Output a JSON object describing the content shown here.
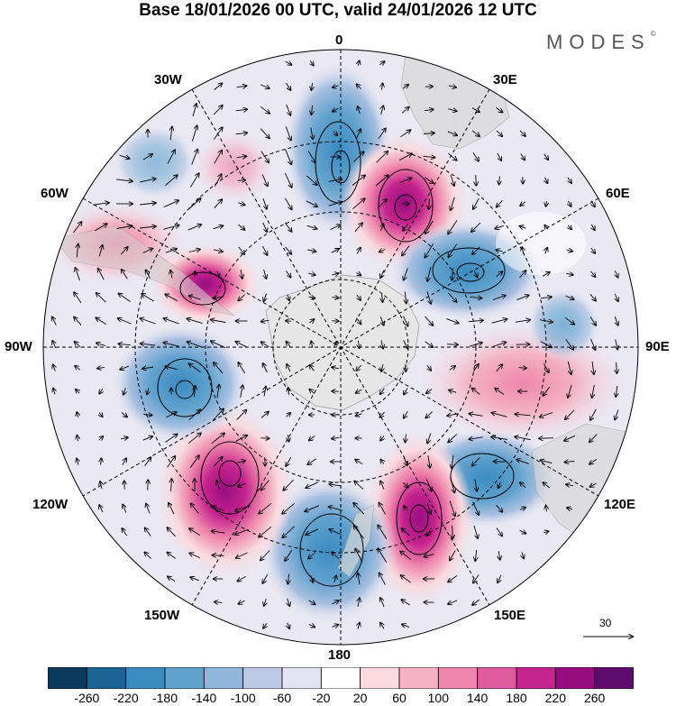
{
  "title": "Base 18/01/2026 00 UTC, valid 24/01/2026 12 UTC",
  "brand": "MODES",
  "brand_mark": "©",
  "longitude_labels": {
    "lon_0": "0",
    "lon_30e": "30E",
    "lon_60e": "60E",
    "lon_90e": "90E",
    "lon_120e": "120E",
    "lon_150e": "150E",
    "lon_180": "180",
    "lon_150w": "150W",
    "lon_120w": "120W",
    "lon_90w": "90W",
    "lon_60w": "60W",
    "lon_30w": "30W"
  },
  "vector_reference": {
    "label": "30"
  },
  "colorbar": {
    "ticks": [
      "-260",
      "-220",
      "-180",
      "-140",
      "-100",
      "-60",
      "-20",
      "20",
      "60",
      "100",
      "140",
      "180",
      "220",
      "260"
    ],
    "colors": [
      "#0b3a5e",
      "#1b6496",
      "#3a8bc1",
      "#62a2ce",
      "#92b5dc",
      "#bccae6",
      "#e3e3f1",
      "#ffffff",
      "#f9dbe0",
      "#f4b2c4",
      "#ef86ac",
      "#e05a9f",
      "#c5238e",
      "#960d80",
      "#5e0b6e"
    ]
  },
  "anomaly_centers": [
    {
      "name": "neg-center-south-atlantic",
      "sign": "negative",
      "strength": 3
    },
    {
      "name": "pos-center-southwest-indian",
      "sign": "positive",
      "strength": 4
    },
    {
      "name": "neg-center-south-indian",
      "sign": "negative",
      "strength": 3
    },
    {
      "name": "pos-center-east-indian",
      "sign": "positive",
      "strength": 2
    },
    {
      "name": "neg-center-south-australia",
      "sign": "negative",
      "strength": 3
    },
    {
      "name": "pos-center-tasman",
      "sign": "positive",
      "strength": 4
    },
    {
      "name": "neg-center-ross-sea",
      "sign": "negative",
      "strength": 3
    },
    {
      "name": "pos-center-south-pacific",
      "sign": "positive",
      "strength": 4
    },
    {
      "name": "neg-center-amundsen",
      "sign": "negative",
      "strength": 3
    },
    {
      "name": "pos-center-drake-passage",
      "sign": "positive",
      "strength": 3
    },
    {
      "name": "pos-center-southern-chile",
      "sign": "positive",
      "strength": 2
    }
  ]
}
